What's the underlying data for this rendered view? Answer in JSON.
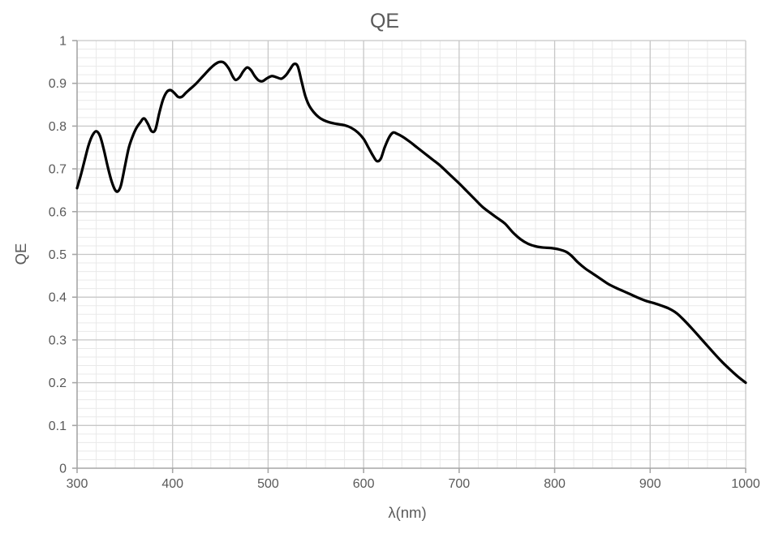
{
  "chart_data": {
    "type": "line",
    "title": "QE",
    "xlabel": "λ(nm)",
    "ylabel": "QE",
    "xlim": [
      300,
      1000
    ],
    "ylim": [
      0,
      1
    ],
    "x_major_ticks": [
      300,
      400,
      500,
      600,
      700,
      800,
      900,
      1000
    ],
    "x_tick_labels": [
      "300",
      "400",
      "500",
      "600",
      "700",
      "800",
      "900",
      "1000"
    ],
    "y_major_ticks": [
      0,
      0.1,
      0.2,
      0.3,
      0.4,
      0.5,
      0.6,
      0.7,
      0.8,
      0.9,
      1
    ],
    "y_tick_labels": [
      "0",
      "0.1",
      "0.2",
      "0.3",
      "0.4",
      "0.5",
      "0.6",
      "0.7",
      "0.8",
      "0.9",
      "1"
    ],
    "x_minor_step": 20,
    "y_minor_step": 0.02,
    "grid": "major and minor gridlines on, both axes",
    "legend_position": "none",
    "colors": {
      "series_line": "#000000",
      "grid_major": "#c7c7c7",
      "grid_minor": "#e9e9e9",
      "axis_line": "#a6a6a6",
      "text": "#595959",
      "background": "#ffffff"
    },
    "series": [
      {
        "name": "QE",
        "color": "#000000",
        "points": [
          [
            300,
            0.655
          ],
          [
            304,
            0.686
          ],
          [
            308,
            0.721
          ],
          [
            312,
            0.755
          ],
          [
            316,
            0.778
          ],
          [
            320,
            0.788
          ],
          [
            324,
            0.777
          ],
          [
            328,
            0.745
          ],
          [
            332,
            0.706
          ],
          [
            336,
            0.672
          ],
          [
            340,
            0.65
          ],
          [
            343,
            0.648
          ],
          [
            346,
            0.662
          ],
          [
            350,
            0.705
          ],
          [
            354,
            0.748
          ],
          [
            358,
            0.775
          ],
          [
            362,
            0.795
          ],
          [
            366,
            0.808
          ],
          [
            370,
            0.818
          ],
          [
            374,
            0.806
          ],
          [
            378,
            0.788
          ],
          [
            382,
            0.792
          ],
          [
            386,
            0.83
          ],
          [
            390,
            0.862
          ],
          [
            394,
            0.88
          ],
          [
            398,
            0.884
          ],
          [
            402,
            0.877
          ],
          [
            406,
            0.868
          ],
          [
            410,
            0.869
          ],
          [
            414,
            0.878
          ],
          [
            419,
            0.888
          ],
          [
            424,
            0.898
          ],
          [
            429,
            0.91
          ],
          [
            434,
            0.922
          ],
          [
            439,
            0.934
          ],
          [
            444,
            0.944
          ],
          [
            449,
            0.95
          ],
          [
            454,
            0.948
          ],
          [
            459,
            0.934
          ],
          [
            463,
            0.916
          ],
          [
            466,
            0.908
          ],
          [
            470,
            0.914
          ],
          [
            474,
            0.928
          ],
          [
            478,
            0.937
          ],
          [
            482,
            0.931
          ],
          [
            486,
            0.917
          ],
          [
            490,
            0.907
          ],
          [
            494,
            0.905
          ],
          [
            499,
            0.912
          ],
          [
            504,
            0.917
          ],
          [
            509,
            0.914
          ],
          [
            514,
            0.911
          ],
          [
            519,
            0.92
          ],
          [
            523,
            0.933
          ],
          [
            527,
            0.945
          ],
          [
            531,
            0.94
          ],
          [
            535,
            0.905
          ],
          [
            539,
            0.87
          ],
          [
            543,
            0.848
          ],
          [
            548,
            0.832
          ],
          [
            553,
            0.821
          ],
          [
            558,
            0.814
          ],
          [
            564,
            0.809
          ],
          [
            572,
            0.805
          ],
          [
            580,
            0.802
          ],
          [
            587,
            0.796
          ],
          [
            594,
            0.785
          ],
          [
            600,
            0.77
          ],
          [
            605,
            0.75
          ],
          [
            610,
            0.73
          ],
          [
            614,
            0.718
          ],
          [
            618,
            0.724
          ],
          [
            622,
            0.75
          ],
          [
            627,
            0.775
          ],
          [
            631,
            0.785
          ],
          [
            635,
            0.782
          ],
          [
            641,
            0.775
          ],
          [
            648,
            0.764
          ],
          [
            656,
            0.75
          ],
          [
            664,
            0.736
          ],
          [
            672,
            0.722
          ],
          [
            680,
            0.708
          ],
          [
            690,
            0.687
          ],
          [
            700,
            0.666
          ],
          [
            708,
            0.648
          ],
          [
            716,
            0.63
          ],
          [
            724,
            0.612
          ],
          [
            732,
            0.598
          ],
          [
            740,
            0.585
          ],
          [
            748,
            0.572
          ],
          [
            756,
            0.552
          ],
          [
            764,
            0.536
          ],
          [
            772,
            0.525
          ],
          [
            780,
            0.519
          ],
          [
            788,
            0.516
          ],
          [
            796,
            0.515
          ],
          [
            804,
            0.512
          ],
          [
            812,
            0.506
          ],
          [
            818,
            0.496
          ],
          [
            824,
            0.482
          ],
          [
            832,
            0.467
          ],
          [
            840,
            0.455
          ],
          [
            848,
            0.443
          ],
          [
            856,
            0.431
          ],
          [
            864,
            0.422
          ],
          [
            872,
            0.414
          ],
          [
            880,
            0.406
          ],
          [
            888,
            0.398
          ],
          [
            896,
            0.391
          ],
          [
            904,
            0.386
          ],
          [
            912,
            0.38
          ],
          [
            920,
            0.373
          ],
          [
            928,
            0.362
          ],
          [
            936,
            0.345
          ],
          [
            944,
            0.326
          ],
          [
            952,
            0.306
          ],
          [
            960,
            0.286
          ],
          [
            968,
            0.266
          ],
          [
            976,
            0.247
          ],
          [
            984,
            0.23
          ],
          [
            992,
            0.214
          ],
          [
            1000,
            0.2
          ]
        ]
      }
    ]
  }
}
